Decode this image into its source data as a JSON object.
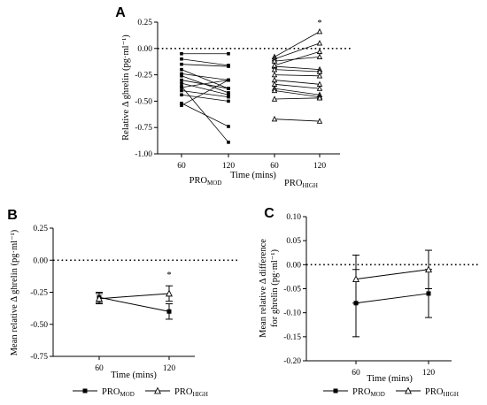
{
  "chart_data": [
    {
      "panel": "A",
      "type": "line",
      "ylabel": "Relative Δ ghrelin (pg·ml⁻¹)",
      "xlabel": "Time (mins)",
      "ylim": [
        -1.0,
        0.25
      ],
      "yticks": [
        "0.25",
        "0.00",
        "-0.25",
        "-0.50",
        "-0.75",
        "-1.00"
      ],
      "x_ticks": [
        "60",
        "120",
        "60",
        "120"
      ],
      "groups": [
        {
          "name_base": "PRO",
          "name_sub": "MOD"
        },
        {
          "name_base": "PRO",
          "name_sub": "HIGH"
        }
      ],
      "annotation": "*",
      "reference_line": 0,
      "pro_mod_pairs": [
        [
          -0.05,
          -0.05
        ],
        [
          -0.1,
          -0.16
        ],
        [
          -0.15,
          -0.17
        ],
        [
          -0.2,
          -0.38
        ],
        [
          -0.24,
          -0.3
        ],
        [
          -0.26,
          -0.42
        ],
        [
          -0.3,
          -0.38
        ],
        [
          -0.33,
          -0.44
        ],
        [
          -0.37,
          -0.3
        ],
        [
          -0.4,
          -0.46
        ],
        [
          -0.44,
          -0.5
        ],
        [
          -0.54,
          -0.3
        ],
        [
          -0.52,
          -0.74
        ],
        [
          -0.36,
          -0.89
        ]
      ],
      "pro_high_pairs": [
        [
          -0.08,
          0.16
        ],
        [
          -0.1,
          0.05
        ],
        [
          -0.12,
          -0.08
        ],
        [
          -0.17,
          -0.2
        ],
        [
          -0.2,
          -0.22
        ],
        [
          -0.25,
          -0.26
        ],
        [
          -0.3,
          -0.34
        ],
        [
          -0.34,
          -0.38
        ],
        [
          -0.38,
          -0.44
        ],
        [
          -0.4,
          -0.46
        ],
        [
          -0.48,
          -0.47
        ],
        [
          -0.16,
          -0.03
        ],
        [
          -0.67,
          -0.69
        ]
      ]
    },
    {
      "panel": "B",
      "type": "line",
      "ylabel": "Mean relative Δ ghrelin (pg·ml⁻¹)",
      "xlabel": "Time (mins)",
      "ylim": [
        -0.75,
        0.25
      ],
      "yticks": [
        "0.25",
        "0.00",
        "-0.25",
        "-0.50",
        "-0.75"
      ],
      "categories": [
        "60",
        "120"
      ],
      "annotation": "*",
      "reference_line": 0,
      "series": [
        {
          "name_base": "PRO",
          "name_sub": "MOD",
          "marker": "square",
          "values": [
            -0.29,
            -0.4
          ],
          "error": [
            0.04,
            0.06
          ]
        },
        {
          "name_base": "PRO",
          "name_sub": "HIGH",
          "marker": "triangle",
          "values": [
            -0.3,
            -0.26
          ],
          "error": [
            0.04,
            0.06
          ]
        }
      ]
    },
    {
      "panel": "C",
      "type": "line",
      "ylabel_line1": "Mean relative Δ difference",
      "ylabel_line2": "for ghrelin (pg·ml⁻¹)",
      "xlabel": "Time (mins)",
      "ylim": [
        -0.2,
        0.1
      ],
      "yticks": [
        "0.10",
        "0.05",
        "0.00",
        "-0.05",
        "-0.10",
        "-0.15",
        "-0.20"
      ],
      "categories": [
        "60",
        "120"
      ],
      "reference_line": 0,
      "series": [
        {
          "name_base": "PRO",
          "name_sub": "MOD",
          "marker": "square",
          "values": [
            -0.08,
            -0.06
          ],
          "error": [
            0.07,
            0.05
          ]
        },
        {
          "name_base": "PRO",
          "name_sub": "HIGH",
          "marker": "triangle",
          "values": [
            -0.03,
            -0.01
          ],
          "error": [
            0.05,
            0.04
          ]
        }
      ]
    }
  ]
}
